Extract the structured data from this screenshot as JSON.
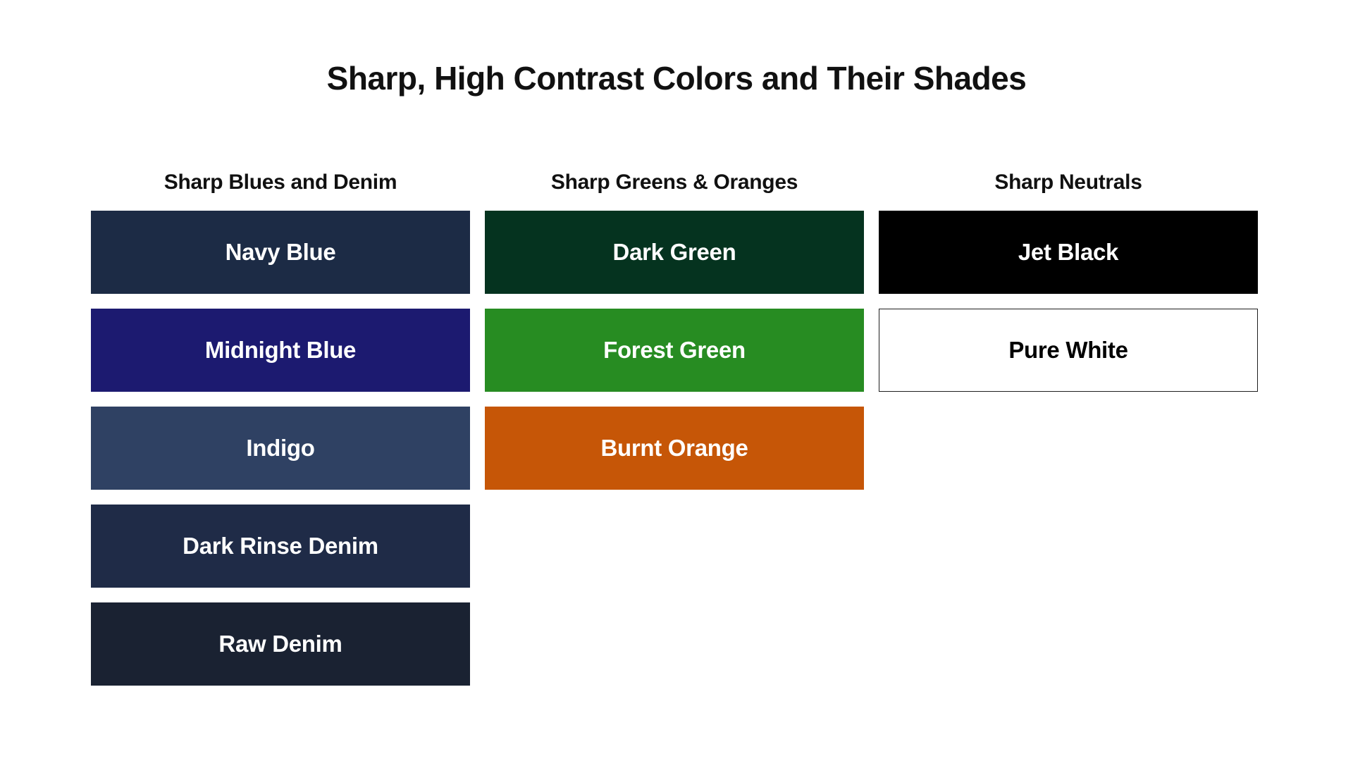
{
  "page": {
    "title": "Sharp, High Contrast Colors and Their Shades",
    "background_color": "#ffffff",
    "text_color": "#111111"
  },
  "columns": [
    {
      "header": "Sharp Blues and Denim",
      "swatches": [
        {
          "label": "Navy Blue",
          "color": "#1C2B45",
          "text_color": "#FFFFFF"
        },
        {
          "label": "Midnight Blue",
          "color": "#1C1A70",
          "text_color": "#FFFFFF"
        },
        {
          "label": "Indigo",
          "color": "#2F4163",
          "text_color": "#FFFFFF"
        },
        {
          "label": "Dark Rinse Denim",
          "color": "#1F2B47",
          "text_color": "#FFFFFF"
        },
        {
          "label": "Raw Denim",
          "color": "#1A2232",
          "text_color": "#FFFFFF"
        }
      ]
    },
    {
      "header": "Sharp Greens & Oranges",
      "swatches": [
        {
          "label": "Dark Green",
          "color": "#05331F",
          "text_color": "#FFFFFF"
        },
        {
          "label": "Forest Green",
          "color": "#278C22",
          "text_color": "#FFFFFF"
        },
        {
          "label": "Burnt Orange",
          "color": "#C65607",
          "text_color": "#FFFFFF"
        }
      ]
    },
    {
      "header": "Sharp Neutrals",
      "swatches": [
        {
          "label": "Jet Black",
          "color": "#000000",
          "text_color": "#FFFFFF"
        },
        {
          "label": "Pure White",
          "color": "#FFFFFF",
          "text_color": "#000000",
          "border_color": "#1F1F1F"
        }
      ]
    }
  ]
}
